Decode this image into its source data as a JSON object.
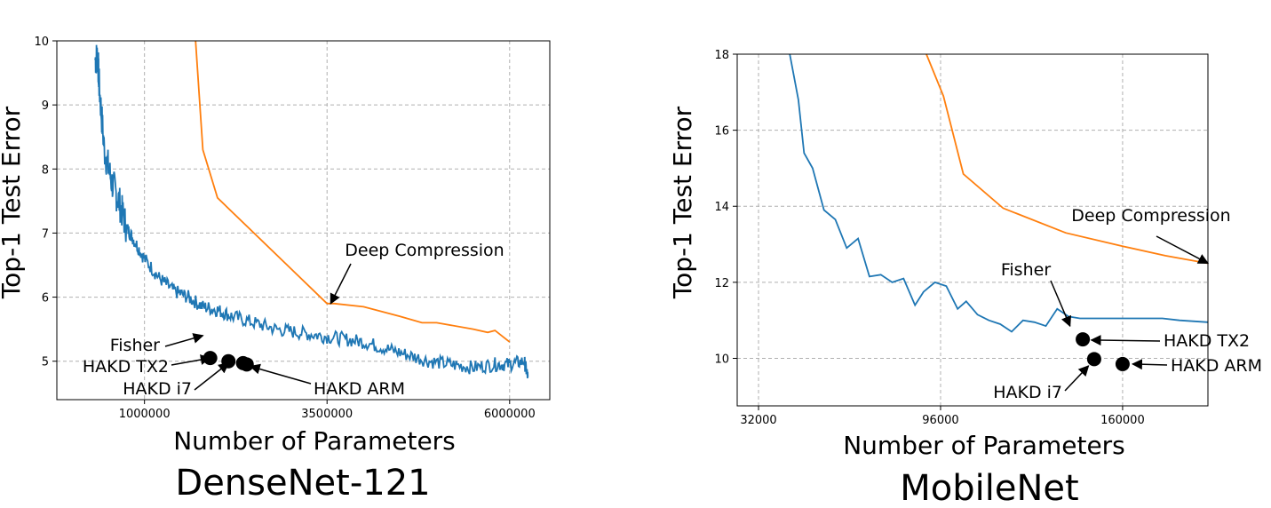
{
  "chart_data": [
    {
      "type": "line",
      "title": "DenseNet-121",
      "xlabel": "Number of Parameters",
      "ylabel": "Top-1 Test Error",
      "xlim": [
        -200000,
        6550000
      ],
      "ylim": [
        4.4,
        10
      ],
      "xticks": [
        1000000,
        3500000,
        6000000
      ],
      "xtick_labels": [
        "1000000",
        "3500000",
        "6000000"
      ],
      "yticks": [
        5,
        6,
        7,
        8,
        9,
        10
      ],
      "ytick_labels": [
        "5",
        "6",
        "7",
        "8",
        "9",
        "10"
      ],
      "grid": true,
      "series": [
        {
          "name": "",
          "color": "#1f77b4",
          "noisy": true,
          "x": [
            320000,
            360000,
            380000,
            450000,
            550000,
            650000,
            750000,
            850000,
            1000000,
            1200000,
            1400000,
            1600000,
            1800000,
            2000000,
            2200000,
            2500000,
            2800000,
            3100000,
            3400000,
            3700000,
            4000000,
            4300000,
            4600000,
            4900000,
            5200000,
            5500000,
            5800000,
            6000000,
            6200000,
            6250000
          ],
          "y": [
            9.7,
            9.75,
            9.3,
            8.3,
            7.8,
            7.5,
            7.1,
            6.9,
            6.6,
            6.3,
            6.1,
            6.0,
            5.85,
            5.8,
            5.7,
            5.6,
            5.5,
            5.45,
            5.4,
            5.35,
            5.3,
            5.2,
            5.1,
            5.0,
            4.95,
            4.9,
            4.95,
            4.95,
            5.0,
            4.75
          ]
        },
        {
          "name": "",
          "color": "#ff7f0e",
          "x": [
            1700000,
            1800000,
            2000000,
            3000000,
            3500000,
            3600000,
            4000000,
            4500000,
            4800000,
            5000000,
            5500000,
            5700000,
            5800000,
            6000000
          ],
          "y": [
            10.0,
            8.3,
            7.55,
            6.45,
            5.9,
            5.9,
            5.85,
            5.7,
            5.6,
            5.6,
            5.5,
            5.45,
            5.48,
            5.3
          ]
        }
      ],
      "points": [
        {
          "label": "Fisher",
          "x": 1900000,
          "y": 5.05
        },
        {
          "label": "HAKD TX2",
          "x": 2150000,
          "y": 5.0
        },
        {
          "label": "HAKD i7",
          "x": 2350000,
          "y": 4.97
        },
        {
          "label": "HAKD ARM",
          "x": 2400000,
          "y": 4.95
        }
      ],
      "annotations": [
        {
          "text": "Deep Compression",
          "target_x": 3550000,
          "target_y": 5.9
        },
        {
          "text": "Fisher",
          "target_x": 1800000,
          "target_y": 5.4
        },
        {
          "text": "HAKD TX2",
          "target_x": 1900000,
          "target_y": 5.05
        },
        {
          "text": "HAKD i7",
          "target_x": 2150000,
          "target_y": 4.97
        },
        {
          "text": "HAKD ARM",
          "target_x": 2450000,
          "target_y": 4.92
        }
      ]
    },
    {
      "type": "line",
      "title": "MobileNet",
      "xlabel": "Number of Parameters",
      "ylabel": "Top-1 Test Error",
      "xlim": [
        24500,
        190000
      ],
      "ylim": [
        8.75,
        18
      ],
      "xticks": [
        32000,
        96000,
        160000
      ],
      "xtick_labels": [
        "32000",
        "96000",
        "160000"
      ],
      "yticks": [
        10,
        12,
        14,
        16,
        18
      ],
      "ytick_labels": [
        "10",
        "12",
        "14",
        "16",
        "18"
      ],
      "grid": true,
      "series": [
        {
          "name": "",
          "color": "#1f77b4",
          "x": [
            43000,
            46000,
            48000,
            51000,
            55000,
            59000,
            63000,
            67000,
            71000,
            75000,
            79000,
            83000,
            87000,
            90000,
            94000,
            98000,
            102000,
            105000,
            109000,
            113000,
            117000,
            121000,
            125000,
            129000,
            133000,
            137000,
            141000,
            145000,
            149000,
            153000,
            157000,
            162000,
            168000,
            174000,
            180000,
            190000
          ],
          "y": [
            18.0,
            16.8,
            15.4,
            15.0,
            13.9,
            13.65,
            12.9,
            13.15,
            12.15,
            12.2,
            12.0,
            12.1,
            11.4,
            11.75,
            12.0,
            11.9,
            11.3,
            11.5,
            11.15,
            11.0,
            10.9,
            10.7,
            11.0,
            10.95,
            10.85,
            11.3,
            11.1,
            11.05,
            11.05,
            11.05,
            11.05,
            11.05,
            11.05,
            11.05,
            11.0,
            10.95
          ]
        },
        {
          "name": "",
          "color": "#ff7f0e",
          "x": [
            91000,
            97000,
            104000,
            118000,
            140000,
            160000,
            175000,
            190000
          ],
          "y": [
            18.0,
            16.9,
            14.85,
            13.95,
            13.3,
            12.95,
            12.7,
            12.5
          ]
        }
      ],
      "points": [
        {
          "label": "HAKD TX2",
          "x": 146000,
          "y": 10.5
        },
        {
          "label": "HAKD i7",
          "x": 150000,
          "y": 9.98
        },
        {
          "label": "HAKD ARM",
          "x": 160000,
          "y": 9.85
        }
      ],
      "annotations": [
        {
          "text": "Deep Compression",
          "target_x": 190000,
          "target_y": 12.5
        },
        {
          "text": "Fisher",
          "target_x": 141500,
          "target_y": 10.85
        },
        {
          "text": "HAKD TX2",
          "target_x": 149000,
          "target_y": 10.48
        },
        {
          "text": "HAKD i7",
          "target_x": 148000,
          "target_y": 9.8
        },
        {
          "text": "HAKD ARM",
          "target_x": 163500,
          "target_y": 9.85
        }
      ]
    }
  ]
}
